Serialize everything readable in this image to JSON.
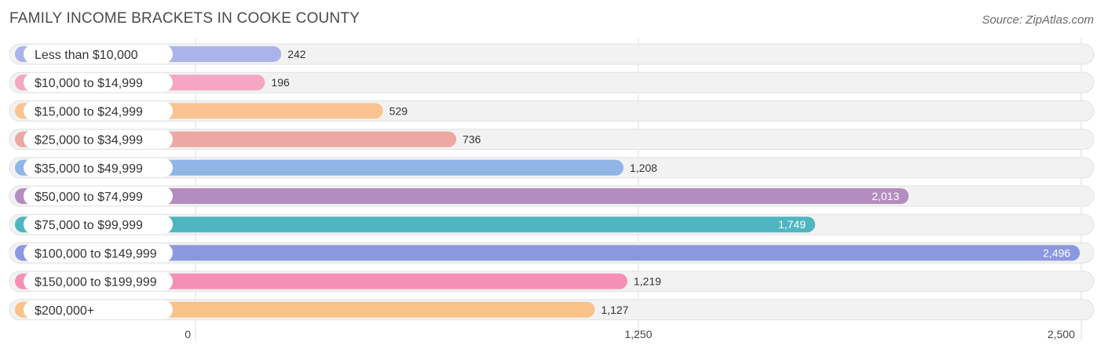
{
  "chart_data": {
    "type": "bar",
    "orientation": "horizontal",
    "title": "FAMILY INCOME BRACKETS IN COOKE COUNTY",
    "source": "Source: ZipAtlas.com",
    "categories": [
      "Less than $10,000",
      "$10,000 to $14,999",
      "$15,000 to $24,999",
      "$25,000 to $34,999",
      "$35,000 to $49,999",
      "$50,000 to $74,999",
      "$75,000 to $99,999",
      "$100,000 to $149,999",
      "$150,000 to $199,999",
      "$200,000+"
    ],
    "values": [
      242,
      196,
      529,
      736,
      1208,
      2013,
      1749,
      2496,
      1219,
      1127
    ],
    "value_labels": [
      "242",
      "196",
      "529",
      "736",
      "1,208",
      "2,013",
      "1,749",
      "2,496",
      "1,219",
      "1,127"
    ],
    "colors": [
      "#aab4ea",
      "#f4a6c3",
      "#f9c491",
      "#eda8a4",
      "#90b6e7",
      "#b48dc0",
      "#4db6c1",
      "#8b98e0",
      "#f590b4",
      "#f9c287"
    ],
    "xlim": [
      0,
      2500
    ],
    "xticks": [
      {
        "value": 0,
        "label": "0"
      },
      {
        "value": 1250,
        "label": "1,250"
      },
      {
        "value": 2500,
        "label": "2,500"
      }
    ],
    "grid": true,
    "xlabel": "",
    "ylabel": ""
  }
}
